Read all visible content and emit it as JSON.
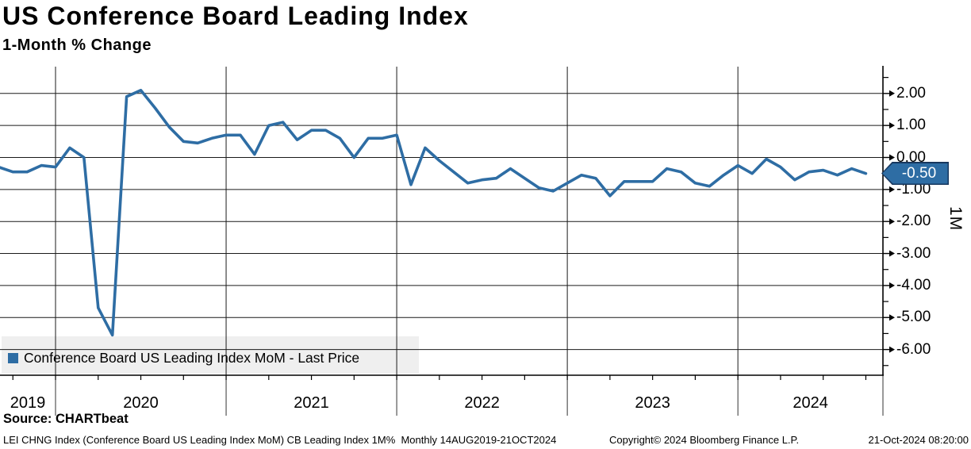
{
  "header": {
    "title": "US Conference Board Leading Index",
    "subtitle": "1-Month % Change"
  },
  "legend": {
    "label": "Conference Board US Leading Index MoM - Last Price"
  },
  "badge": {
    "label": "-0.50"
  },
  "axis": {
    "right_unit": "1M",
    "y_tick_labels": [
      "2.00",
      "1.00",
      "0.00",
      "-1.00",
      "-2.00",
      "-3.00",
      "-4.00",
      "-5.00",
      "-6.00"
    ],
    "x_year_labels": [
      "2019",
      "2020",
      "2021",
      "2022",
      "2023",
      "2024"
    ]
  },
  "footer": {
    "source": "Source: CHARTbeat",
    "description": "LEI CHNG Index (Conference Board US Leading Index MoM) CB Leading Index 1M%  Monthly 14AUG2019-21OCT2024",
    "copyright": "Copyright© 2024 Bloomberg Finance L.P.",
    "timestamp": "21-Oct-2024 08:20:00"
  },
  "colors": {
    "line": "#2e6da4",
    "badge_bg": "#2e6da4",
    "badge_border": "#17375e",
    "badge_text": "#ffffff",
    "legend_bg": "#efefef",
    "grid": "#1a1a1a",
    "axis": "#000000"
  },
  "chart_data": {
    "type": "line",
    "title": "US Conference Board Leading Index",
    "subtitle": "1-Month % Change",
    "series_name": "Conference Board US Leading Index MoM - Last Price",
    "frequency": "monthly",
    "period": "14AUG2019-21OCT2024",
    "xlabel": "",
    "ylabel": "1M",
    "ylim": [
      -6.9,
      2.8
    ],
    "y_ticks": [
      2.0,
      1.0,
      0.0,
      -1.0,
      -2.0,
      -3.0,
      -4.0,
      -5.0,
      -6.0
    ],
    "x_year_labels": [
      "2019",
      "2020",
      "2021",
      "2022",
      "2023",
      "2024"
    ],
    "grid": true,
    "legend_position": "bottom-left",
    "last_price": -0.5,
    "months": [
      "2019-09",
      "2019-10",
      "2019-11",
      "2019-12",
      "2020-01",
      "2020-02",
      "2020-03",
      "2020-04",
      "2020-05",
      "2020-06",
      "2020-07",
      "2020-08",
      "2020-09",
      "2020-10",
      "2020-11",
      "2020-12",
      "2021-01",
      "2021-02",
      "2021-03",
      "2021-04",
      "2021-05",
      "2021-06",
      "2021-07",
      "2021-08",
      "2021-09",
      "2021-10",
      "2021-11",
      "2021-12",
      "2022-01",
      "2022-02",
      "2022-03",
      "2022-04",
      "2022-05",
      "2022-06",
      "2022-07",
      "2022-08",
      "2022-09",
      "2022-10",
      "2022-11",
      "2022-12",
      "2023-01",
      "2023-02",
      "2023-03",
      "2023-04",
      "2023-05",
      "2023-06",
      "2023-07",
      "2023-08",
      "2023-09",
      "2023-10",
      "2023-11",
      "2023-12",
      "2024-01",
      "2024-02",
      "2024-03",
      "2024-04",
      "2024-05",
      "2024-06",
      "2024-07",
      "2024-08",
      "2024-09",
      "2024-10"
    ],
    "values": [
      -0.3,
      -0.45,
      -0.45,
      -0.25,
      -0.3,
      0.3,
      0.0,
      -4.7,
      -5.55,
      1.9,
      2.1,
      1.55,
      0.95,
      0.5,
      0.45,
      0.6,
      0.7,
      0.7,
      0.1,
      1.0,
      1.1,
      0.55,
      0.85,
      0.85,
      0.6,
      0.0,
      0.6,
      0.6,
      0.7,
      -0.85,
      0.3,
      -0.1,
      -0.45,
      -0.8,
      -0.7,
      -0.65,
      -0.35,
      -0.65,
      -0.95,
      -1.05,
      -0.8,
      -0.55,
      -0.65,
      -1.2,
      -0.75,
      -0.75,
      -0.75,
      -0.35,
      -0.45,
      -0.8,
      -0.9,
      -0.55,
      -0.25,
      -0.5,
      -0.05,
      -0.3,
      -0.7,
      -0.45,
      -0.4,
      -0.55,
      -0.35,
      -0.5
    ]
  }
}
